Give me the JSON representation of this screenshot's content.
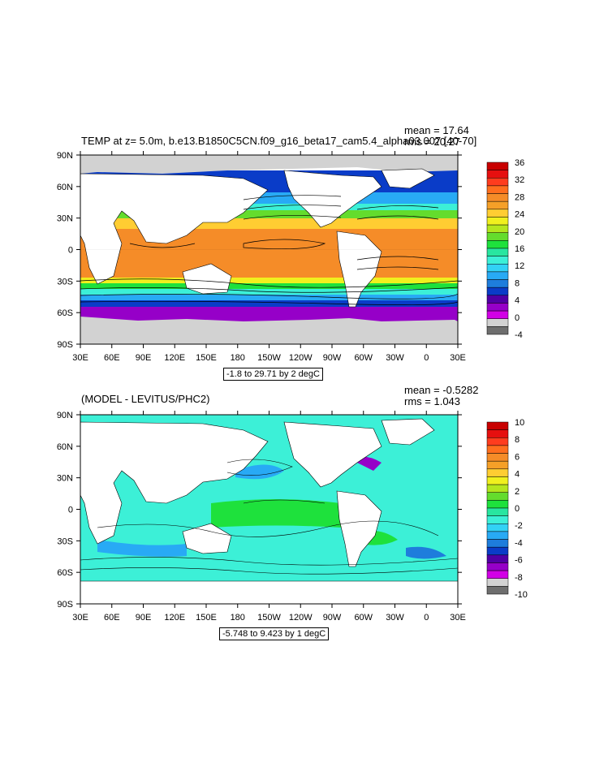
{
  "panels": [
    {
      "title_left": "TEMP at z=   5.0m, b.e13.B1850C5CN.f09_g16_beta17_cam5.4_alpha03.007 [40-70]",
      "mean": "mean = 17.64",
      "rms": "rms = 20.27",
      "range_label": "-1.8 to 29.71 by 2 degC",
      "lat_ticks": [
        "90N",
        "60N",
        "30N",
        "0",
        "30S",
        "60S",
        "90S"
      ],
      "lon_ticks": [
        "30E",
        "60E",
        "90E",
        "120E",
        "150E",
        "180",
        "150W",
        "120W",
        "90W",
        "60W",
        "30W",
        "0",
        "30E"
      ],
      "colorbar_labels": [
        "36",
        "32",
        "28",
        "24",
        "20",
        "16",
        "12",
        "8",
        "4",
        "0",
        "-4"
      ],
      "colorbar_colors": [
        "#c80000",
        "#e60f0f",
        "#ff3c1e",
        "#ff6e1e",
        "#f58c28",
        "#f5a028",
        "#ffcd32",
        "#f0f01e",
        "#b4e61e",
        "#64dc2d",
        "#1ee13c",
        "#28e6a0",
        "#3cf0d7",
        "#32d2f5",
        "#28aaf5",
        "#1e7ddc",
        "#0a3cc8",
        "#5000a5",
        "#9600c8",
        "#d200e6",
        "#d2d2d2",
        "#6e6e6e"
      ]
    },
    {
      "title_left": "(MODEL - LEVITUS/PHC2)",
      "mean": "mean = -0.5282",
      "rms": "rms = 1.043",
      "range_label": "-5.748 to 9.423 by 1 degC",
      "lat_ticks": [
        "90N",
        "60N",
        "30N",
        "0",
        "30S",
        "60S",
        "90S"
      ],
      "lon_ticks": [
        "30E",
        "60E",
        "90E",
        "120E",
        "150E",
        "180",
        "150W",
        "120W",
        "90W",
        "60W",
        "30W",
        "0",
        "30E"
      ],
      "colorbar_labels": [
        "10",
        "8",
        "6",
        "4",
        "2",
        "0",
        "-2",
        "-4",
        "-6",
        "-8",
        "-10"
      ],
      "colorbar_colors": [
        "#c80000",
        "#e60f0f",
        "#ff3c1e",
        "#ff6e1e",
        "#f58c28",
        "#f5a028",
        "#ffcd32",
        "#f0f01e",
        "#b4e61e",
        "#64dc2d",
        "#1ee13c",
        "#28e6a0",
        "#3cf0d7",
        "#32d2f5",
        "#28aaf5",
        "#1e7ddc",
        "#0a3cc8",
        "#5000a5",
        "#9600c8",
        "#d200e6",
        "#d2d2d2",
        "#6e6e6e"
      ]
    }
  ]
}
